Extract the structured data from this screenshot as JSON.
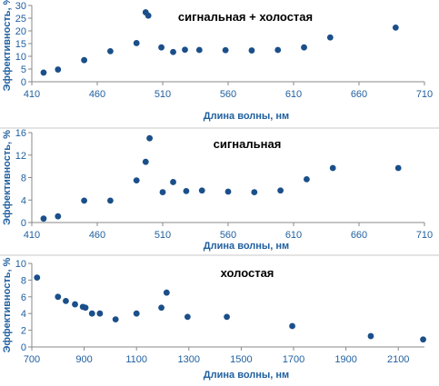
{
  "colors": {
    "point": "#1a4f8a",
    "text": "#1f5f9f",
    "axis": "#8a8a8a"
  },
  "chart_data": [
    {
      "type": "scatter",
      "title": "сигнальная + холостая",
      "xlabel": "Длина волны, нм",
      "ylabel": "Эффективность, %",
      "xlim": [
        410,
        710
      ],
      "ylim": [
        0,
        30
      ],
      "xticks": [
        410,
        460,
        510,
        560,
        610,
        660,
        710
      ],
      "yticks": [
        0,
        5,
        10,
        15,
        20,
        25,
        30
      ],
      "x": [
        419,
        430,
        450,
        470,
        490,
        497,
        499,
        509,
        518,
        527,
        538,
        558,
        578,
        598,
        618,
        638,
        688
      ],
      "y": [
        3.6,
        4.8,
        8.5,
        12,
        15.2,
        27.3,
        26,
        13.5,
        11.7,
        12.6,
        12.5,
        12.4,
        12.3,
        12.5,
        13.5,
        17.4,
        21.3
      ]
    },
    {
      "type": "scatter",
      "title": "сигнальная",
      "xlabel": "Длина волны, нм",
      "ylabel": "Эффективность, %",
      "xlim": [
        410,
        710
      ],
      "ylim": [
        0,
        16
      ],
      "xticks": [
        410,
        460,
        510,
        560,
        610,
        660,
        710
      ],
      "yticks": [
        0,
        4,
        8,
        12,
        16
      ],
      "x": [
        419,
        430,
        450,
        470,
        490,
        497,
        500,
        510,
        518,
        528,
        540,
        560,
        580,
        600,
        620,
        640,
        690
      ],
      "y": [
        0.7,
        1.1,
        3.9,
        3.9,
        7.5,
        10.8,
        15,
        5.4,
        7.2,
        5.6,
        5.7,
        5.5,
        5.4,
        5.7,
        7.7,
        9.7,
        9.7
      ]
    },
    {
      "type": "scatter",
      "title": "холостая",
      "xlabel": "Длина волны, нм",
      "ylabel": "Эффективность, %",
      "xlim": [
        700,
        2200
      ],
      "ylim": [
        0,
        10
      ],
      "xticks": [
        700,
        900,
        1100,
        1300,
        1500,
        1700,
        1900,
        2100
      ],
      "yticks": [
        0,
        2,
        4,
        6,
        8,
        10
      ],
      "x": [
        720,
        800,
        830,
        865,
        895,
        905,
        930,
        960,
        1020,
        1100,
        1195,
        1215,
        1295,
        1445,
        1695,
        1995,
        2195
      ],
      "y": [
        8.3,
        6,
        5.5,
        5.1,
        4.8,
        4.7,
        4,
        4,
        3.3,
        4,
        4.7,
        6.5,
        3.6,
        3.6,
        2.5,
        1.3,
        0.9
      ]
    }
  ]
}
